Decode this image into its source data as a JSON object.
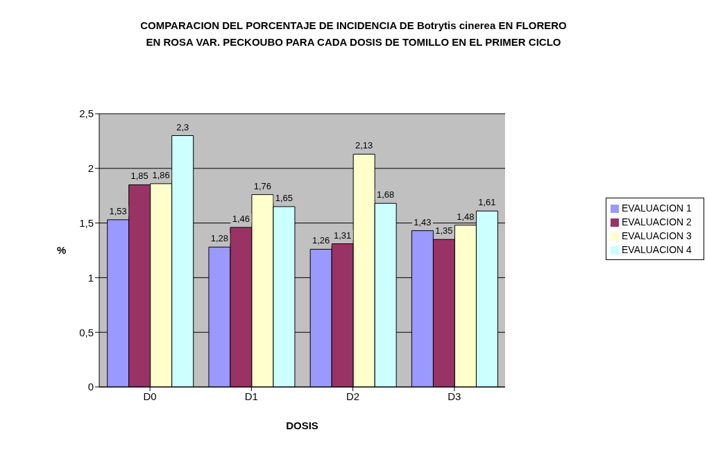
{
  "chart_data": {
    "type": "bar",
    "title": "COMPARACION DEL PORCENTAJE DE INCIDENCIA DE Botrytis cinerea EN FLORERO\nEN ROSA VAR. PECKOUBO PARA CADA DOSIS DE TOMILLO EN EL PRIMER CICLO",
    "xlabel": "DOSIS",
    "ylabel": "%",
    "categories": [
      "D0",
      "D1",
      "D2",
      "D3"
    ],
    "series": [
      {
        "name": "EVALUACION 1",
        "color": "#9999ff",
        "values": [
          1.53,
          1.28,
          1.26,
          1.43
        ],
        "value_labels": [
          "1,53",
          "1,28",
          "1,26",
          "1,43"
        ]
      },
      {
        "name": "EVALUACION 2",
        "color": "#993366",
        "values": [
          1.85,
          1.46,
          1.31,
          1.35
        ],
        "value_labels": [
          "1,85",
          "1,46",
          "1,31",
          "1,35"
        ]
      },
      {
        "name": "EVALUACION 3",
        "color": "#ffffcc",
        "values": [
          1.86,
          1.76,
          2.13,
          1.48
        ],
        "value_labels": [
          "1,86",
          "1,76",
          "2,13",
          "1,48"
        ]
      },
      {
        "name": "EVALUACION 4",
        "color": "#ccffff",
        "values": [
          2.3,
          1.65,
          1.68,
          1.61
        ],
        "value_labels": [
          "2,3",
          "1,65",
          "1,68",
          "1,61"
        ]
      }
    ],
    "ylim": [
      0,
      2.5
    ],
    "yticks": [
      0,
      {
        "value": 0.5,
        "label": "0,5"
      },
      1,
      {
        "value": 1.5,
        "label": "1,5"
      },
      2,
      {
        "value": 2.5,
        "label": "2,5"
      }
    ],
    "grid": "y",
    "legend": "right"
  }
}
